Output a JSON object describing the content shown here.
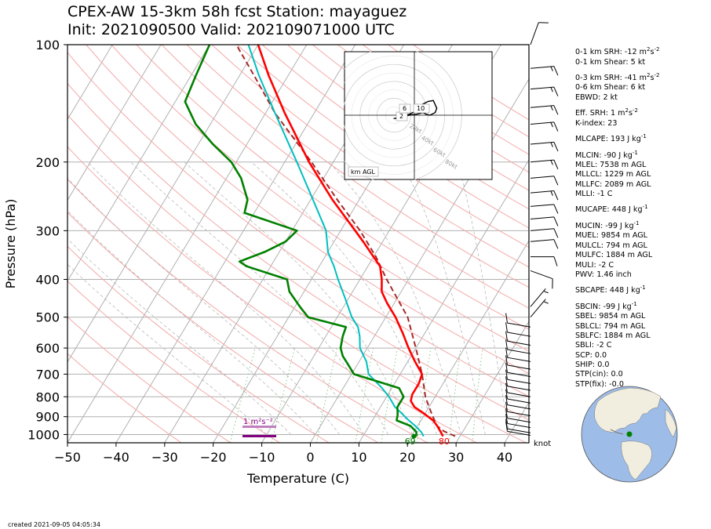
{
  "header": {
    "title_line1": "CPEX-AW 15-3km  58h fcst  Station: mayaguez",
    "title_line2": "Init: 2021090500  Valid: 202109071000 UTC"
  },
  "footer": {
    "created": "created 2021-09-05 04:05:34"
  },
  "stats": [
    {
      "text": "0-1 km SRH: -12 m",
      "sup": "2",
      "mid": "s",
      "sup2": "-2"
    },
    {
      "text": "0-1 km Shear: 5 kt"
    },
    {
      "text": "0-3 km SRH: -41 m",
      "sup": "2",
      "mid": "s",
      "sup2": "-2",
      "gap": true
    },
    {
      "text": "0-6 km Shear: 6 kt"
    },
    {
      "text": "EBWD: 2 kt"
    },
    {
      "text": "Eff. SRH: 1 m",
      "sup": "2",
      "mid": "s",
      "sup2": "-2",
      "gap": true
    },
    {
      "text": "K-index: 23"
    },
    {
      "text": "MLCAPE: 193 J kg",
      "sup": "-1",
      "gap": true
    },
    {
      "text": "MLCIN: -90 J kg",
      "sup": "-1",
      "gap": true
    },
    {
      "text": "MLEL: 7538 m AGL"
    },
    {
      "text": "MLLCL: 1229 m AGL"
    },
    {
      "text": "MLLFC: 2089 m AGL"
    },
    {
      "text": "MLLI: -1 C"
    },
    {
      "text": "MUCAPE: 448 J kg",
      "sup": "-1",
      "gap": true
    },
    {
      "text": "MUCIN: -99 J kg",
      "sup": "-1",
      "gap": true
    },
    {
      "text": "MUEL: 9854 m AGL"
    },
    {
      "text": "MULCL: 794 m AGL"
    },
    {
      "text": "MULFC: 1884 m AGL"
    },
    {
      "text": "MULI: -2 C"
    },
    {
      "text": "PWV: 1.46 inch"
    },
    {
      "text": "SBCAPE: 448 J kg",
      "sup": "-1",
      "gap": true
    },
    {
      "text": "SBCIN: -99 J kg",
      "sup": "-1",
      "gap": true
    },
    {
      "text": "SBEL: 9854 m AGL"
    },
    {
      "text": "SBLCL: 794 m AGL"
    },
    {
      "text": "SBLFC: 1884 m AGL"
    },
    {
      "text": "SBLI: -2 C"
    },
    {
      "text": "SCP: 0.0"
    },
    {
      "text": "SHIP: 0.0"
    },
    {
      "text": "STP(cin): 0.0"
    },
    {
      "text": "STP(fix): -0.0"
    }
  ],
  "chart_data": {
    "type": "skewt",
    "xlabel": "Temperature (C)",
    "ylabel": "Pressure (hPa)",
    "xlim": [
      -50,
      45
    ],
    "ylim": [
      1050,
      100
    ],
    "x_ticks": [
      -50,
      -40,
      -30,
      -20,
      -10,
      0,
      10,
      20,
      30,
      40
    ],
    "x_tick_labels": [
      "−50",
      "−40",
      "−30",
      "−20",
      "−10",
      "0",
      "10",
      "20",
      "30",
      "40"
    ],
    "p_ticks": [
      1000,
      900,
      800,
      700,
      600,
      500,
      400,
      300,
      200,
      100
    ],
    "p_tick_labels": [
      "1000",
      "900",
      "800",
      "700",
      "600",
      "500",
      "400",
      "300",
      "200",
      "100"
    ],
    "skew": 0.6,
    "colors": {
      "temperature": "#ff0000",
      "dewpoint": "#008000",
      "wetbulb": "#00bfbf",
      "parcel": "#a52a2a",
      "isotherm": "#b0b0b0",
      "dry_adiabat": "#f4a8a8",
      "moist_adiabat": "#b0b0b0",
      "mixing_ratio": "#7ec07e",
      "srh_bar": "#800080"
    },
    "series": [
      {
        "key": "temperature",
        "points": [
          [
            1010,
            26.5
          ],
          [
            985,
            25.5
          ],
          [
            950,
            24
          ],
          [
            920,
            22.5
          ],
          [
            880,
            19.5
          ],
          [
            850,
            17
          ],
          [
            820,
            15.5
          ],
          [
            790,
            15
          ],
          [
            740,
            15
          ],
          [
            700,
            14.5
          ],
          [
            650,
            11.5
          ],
          [
            600,
            8.5
          ],
          [
            550,
            5.5
          ],
          [
            500,
            2
          ],
          [
            460,
            -1.5
          ],
          [
            430,
            -4
          ],
          [
            400,
            -5.5
          ],
          [
            370,
            -7.5
          ],
          [
            350,
            -10
          ],
          [
            320,
            -14
          ],
          [
            300,
            -17
          ],
          [
            250,
            -25.5
          ],
          [
            200,
            -35
          ],
          [
            150,
            -46
          ],
          [
            120,
            -54
          ],
          [
            100,
            -60
          ]
        ]
      },
      {
        "key": "dewpoint",
        "points": [
          [
            1010,
            21
          ],
          [
            985,
            20.5
          ],
          [
            950,
            18.5
          ],
          [
            920,
            15
          ],
          [
            890,
            14.5
          ],
          [
            850,
            13.5
          ],
          [
            800,
            13.5
          ],
          [
            760,
            11.5
          ],
          [
            700,
            0.5
          ],
          [
            660,
            -2
          ],
          [
            630,
            -4
          ],
          [
            600,
            -5.5
          ],
          [
            560,
            -6.5
          ],
          [
            530,
            -7
          ],
          [
            500,
            -16
          ],
          [
            470,
            -19
          ],
          [
            430,
            -23
          ],
          [
            400,
            -25
          ],
          [
            370,
            -35
          ],
          [
            360,
            -37
          ],
          [
            340,
            -33
          ],
          [
            320,
            -30
          ],
          [
            300,
            -29
          ],
          [
            270,
            -42
          ],
          [
            250,
            -43
          ],
          [
            220,
            -47
          ],
          [
            200,
            -51
          ],
          [
            180,
            -57
          ],
          [
            160,
            -63
          ],
          [
            140,
            -68
          ],
          [
            120,
            -69
          ],
          [
            100,
            -70
          ]
        ]
      },
      {
        "key": "wetbulb",
        "points": [
          [
            1010,
            22.5
          ],
          [
            985,
            21.5
          ],
          [
            950,
            19.5
          ],
          [
            920,
            17.5
          ],
          [
            880,
            15
          ],
          [
            850,
            13
          ],
          [
            800,
            10.5
          ],
          [
            760,
            8
          ],
          [
            700,
            3.5
          ],
          [
            650,
            1.5
          ],
          [
            600,
            -1.5
          ],
          [
            560,
            -3
          ],
          [
            530,
            -4.5
          ],
          [
            500,
            -7
          ],
          [
            450,
            -10.5
          ],
          [
            400,
            -14.5
          ],
          [
            370,
            -17
          ],
          [
            340,
            -20
          ],
          [
            300,
            -23
          ],
          [
            250,
            -29.5
          ],
          [
            200,
            -37.5
          ],
          [
            150,
            -48
          ],
          [
            120,
            -56
          ],
          [
            100,
            -62
          ]
        ]
      },
      {
        "key": "parcel",
        "points": [
          [
            1010,
            29
          ],
          [
            980,
            26
          ],
          [
            950,
            24
          ],
          [
            900,
            22
          ],
          [
            850,
            20
          ],
          [
            800,
            18
          ],
          [
            700,
            14.5
          ],
          [
            600,
            10
          ],
          [
            500,
            4.5
          ],
          [
            400,
            -4.5
          ],
          [
            350,
            -9.5
          ],
          [
            300,
            -16
          ],
          [
            250,
            -24.5
          ],
          [
            200,
            -34.5
          ],
          [
            150,
            -48
          ],
          [
            120,
            -57
          ],
          [
            100,
            -64.5
          ]
        ]
      }
    ],
    "surface_labels": [
      {
        "key": "temperature",
        "text": "80",
        "color": "#ff0000",
        "t": 27.5
      },
      {
        "key": "dewpoint",
        "text": "69",
        "color": "#008000",
        "t": 20.5
      }
    ],
    "srh_label": "1 m²s⁻²",
    "barb_unit_label": "knot",
    "wind_barbs": [
      {
        "p": 1005,
        "speed": 10,
        "dir": 100
      },
      {
        "p": 990,
        "speed": 10,
        "dir": 100
      },
      {
        "p": 960,
        "speed": 10,
        "dir": 100
      },
      {
        "p": 930,
        "speed": 10,
        "dir": 100
      },
      {
        "p": 895,
        "speed": 10,
        "dir": 100
      },
      {
        "p": 860,
        "speed": 10,
        "dir": 100
      },
      {
        "p": 830,
        "speed": 10,
        "dir": 100
      },
      {
        "p": 800,
        "speed": 10,
        "dir": 100
      },
      {
        "p": 770,
        "speed": 10,
        "dir": 100
      },
      {
        "p": 740,
        "speed": 10,
        "dir": 100
      },
      {
        "p": 710,
        "speed": 10,
        "dir": 100
      },
      {
        "p": 680,
        "speed": 10,
        "dir": 100
      },
      {
        "p": 650,
        "speed": 10,
        "dir": 100
      },
      {
        "p": 620,
        "speed": 10,
        "dir": 100
      },
      {
        "p": 590,
        "speed": 10,
        "dir": 100
      },
      {
        "p": 560,
        "speed": 10,
        "dir": 100
      },
      {
        "p": 530,
        "speed": 10,
        "dir": 100
      },
      {
        "p": 500,
        "speed": 5,
        "dir": 220
      },
      {
        "p": 470,
        "speed": 5,
        "dir": 220
      },
      {
        "p": 380,
        "speed": 10,
        "dir": 290
      },
      {
        "p": 350,
        "speed": 10,
        "dir": 270
      },
      {
        "p": 320,
        "speed": 10,
        "dir": 265
      },
      {
        "p": 300,
        "speed": 10,
        "dir": 265
      },
      {
        "p": 280,
        "speed": 10,
        "dir": 265
      },
      {
        "p": 260,
        "speed": 10,
        "dir": 265
      },
      {
        "p": 240,
        "speed": 15,
        "dir": 265
      },
      {
        "p": 220,
        "speed": 10,
        "dir": 265
      },
      {
        "p": 200,
        "speed": 15,
        "dir": 265
      },
      {
        "p": 180,
        "speed": 15,
        "dir": 265
      },
      {
        "p": 160,
        "speed": 15,
        "dir": 265
      },
      {
        "p": 145,
        "speed": 15,
        "dir": 265
      },
      {
        "p": 130,
        "speed": 15,
        "dir": 265
      },
      {
        "p": 115,
        "speed": 15,
        "dir": 265
      },
      {
        "p": 100,
        "speed": 10,
        "dir": 200
      }
    ],
    "hodograph": {
      "rings_kt": [
        20,
        40,
        60,
        80
      ],
      "ring_labels": [
        "20kt",
        "40kt",
        "60kt",
        "80kt"
      ],
      "height_labels": [
        "2",
        "6",
        "10"
      ],
      "legend": "km AGL",
      "trace_kt": [
        [
          -11,
          -2
        ],
        [
          -9,
          -1
        ],
        [
          -6,
          0
        ],
        [
          -3,
          0.5
        ],
        [
          -1,
          1.5
        ],
        [
          0,
          2
        ],
        [
          2,
          4
        ],
        [
          5,
          6.5
        ],
        [
          8,
          8
        ],
        [
          11,
          8.5
        ],
        [
          13,
          4
        ],
        [
          12,
          1.5
        ],
        [
          9,
          0
        ],
        [
          7,
          0.5
        ],
        [
          5,
          1.5
        ],
        [
          3,
          1
        ],
        [
          1,
          0.5
        ],
        [
          -2,
          0.2
        ],
        [
          -5,
          -0.5
        ],
        [
          -10,
          -1.5
        ],
        [
          -12,
          -2
        ]
      ]
    }
  }
}
